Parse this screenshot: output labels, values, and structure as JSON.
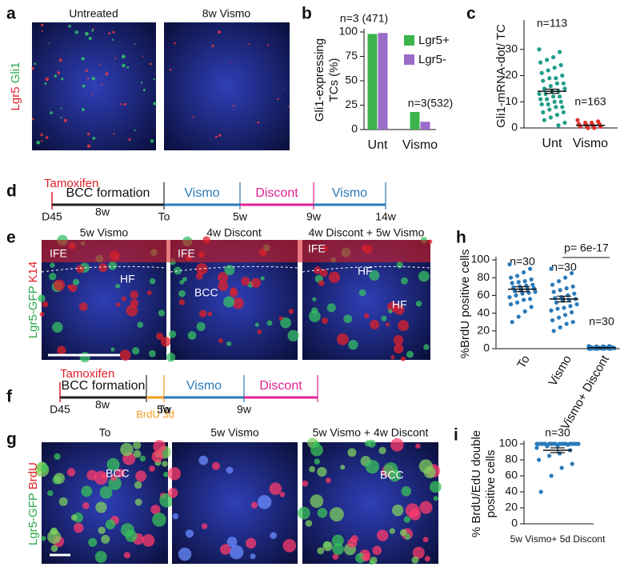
{
  "panel_labels": [
    "a",
    "b",
    "c",
    "d",
    "e",
    "f",
    "g",
    "h",
    "i"
  ],
  "panel_a": {
    "ylabel_red": "Lgr5",
    "ylabel_green": "Gli1",
    "titles": [
      "Untreated",
      "8w Vismo"
    ]
  },
  "panel_e": {
    "ylabel_green": "Lgr5-GFP",
    "ylabel_red": "K14",
    "titles": [
      "5w Vismo",
      "4w Discont",
      "4w Discont + 5w Vismo"
    ],
    "labels": [
      "IFE",
      "HF",
      "IFE",
      "BCC",
      "IFE",
      "HF",
      "HF"
    ]
  },
  "panel_g": {
    "ylabel_green": "Lgr5-GFP",
    "ylabel_red": "BrdU",
    "titles": [
      "To",
      "5w Vismo",
      "5w Vismo + 4w Discont"
    ],
    "labels": [
      "BCC",
      "BCC"
    ]
  },
  "timelines": [
    {
      "start_label": "Tamoxifen",
      "phases": [
        {
          "name": "BCC formation",
          "color": "#222222"
        },
        {
          "name": "Vismo",
          "color": "#2a7ab9"
        },
        {
          "name": "Discont",
          "color": "#e2218f"
        },
        {
          "name": "Vismo",
          "color": "#2a7ab9"
        }
      ],
      "ticks": [
        "D45",
        "8w",
        "To",
        "5w",
        "9w",
        "14w"
      ]
    },
    {
      "start_label": "Tamoxifen",
      "phases": [
        {
          "name": "BCC formation",
          "color": "#222222"
        },
        {
          "name": "BrdU 3d",
          "color": "#f39a1e"
        },
        {
          "name": "Vismo",
          "color": "#2a7ab9"
        },
        {
          "name": "Discont",
          "color": "#e2218f"
        }
      ],
      "ticks": [
        "D45",
        "8w",
        "To",
        "5w",
        "9w"
      ]
    }
  ],
  "chart_data": [
    {
      "type": "bar",
      "ylabel": [
        "Gli1-expressing",
        "TCs (%)"
      ],
      "categories": [
        "Unt",
        "Vismo"
      ],
      "series": [
        {
          "name": "Lgr5+",
          "color": "#3cb44b",
          "values": [
            98,
            18
          ]
        },
        {
          "name": "Lgr5-",
          "color": "#9b6bc8",
          "values": [
            99,
            8
          ]
        }
      ],
      "ylim": [
        0,
        100
      ],
      "yticks": [
        0,
        25,
        50,
        75,
        100
      ],
      "annotations": [
        "n=3 (471)",
        "n=3(532)"
      ]
    },
    {
      "type": "strip",
      "ylabel": [
        "Gli1-mRNA-dot/ TC"
      ],
      "categories": [
        "Unt",
        "Vismo"
      ],
      "groups": [
        {
          "color": "#1f9e89",
          "mean": 14,
          "sem": 0.8,
          "values": [
            30,
            29,
            27,
            26,
            25,
            24,
            23,
            22,
            21,
            20,
            19,
            19,
            18,
            17,
            17,
            16,
            15,
            15,
            14,
            14,
            13,
            13,
            12,
            12,
            11,
            11,
            10,
            10,
            9,
            9,
            8,
            8,
            7,
            6,
            6,
            5,
            4,
            3,
            2,
            1
          ]
        },
        {
          "color": "#e0302a",
          "mean": 1,
          "sem": 0.1,
          "values": [
            3,
            2.5,
            2,
            2,
            1.5,
            1.5,
            1,
            1,
            0.5,
            0.5,
            0,
            0
          ]
        }
      ],
      "ylim": [
        0,
        40
      ],
      "yticks": [
        0,
        10,
        20,
        30
      ],
      "annotations": [
        "n=113",
        "n=163"
      ]
    },
    {
      "type": "strip",
      "ylabel": [
        "%BrdU positive cells"
      ],
      "categories": [
        "To",
        "Vismo",
        "Vismo+ Discont"
      ],
      "groups": [
        {
          "color": "#2a7ab9",
          "mean": 67,
          "sem": 2.8,
          "values": [
            95,
            90,
            86,
            82,
            80,
            78,
            76,
            75,
            74,
            72,
            71,
            70,
            69,
            68,
            67,
            66,
            65,
            64,
            63,
            62,
            60,
            58,
            56,
            55,
            52,
            50,
            47,
            42,
            36,
            30
          ]
        },
        {
          "color": "#2a7ab9",
          "mean": 56,
          "sem": 3.2,
          "values": [
            90,
            85,
            80,
            76,
            72,
            70,
            68,
            66,
            64,
            62,
            60,
            58,
            57,
            56,
            55,
            54,
            52,
            50,
            48,
            46,
            45,
            43,
            41,
            38,
            35,
            32,
            30,
            28,
            24,
            20
          ]
        },
        {
          "color": "#2a7ab9",
          "mean": 1,
          "sem": 0.2,
          "values": [
            3,
            3,
            2.5,
            2.5,
            2,
            2,
            2,
            1.5,
            1.5,
            1.5,
            1,
            1,
            1,
            1,
            1,
            0.5,
            0.5,
            0.5,
            0.5,
            0.5,
            0,
            0,
            0,
            0,
            0,
            0,
            0,
            0,
            0,
            0
          ]
        }
      ],
      "ylim": [
        0,
        100
      ],
      "yticks": [
        0,
        20,
        40,
        60,
        80,
        100
      ],
      "annotations": [
        "n=30",
        "n=30",
        "n=30",
        "p= 6e-17"
      ]
    },
    {
      "type": "strip",
      "ylabel": [
        "% BrdU/EdU double",
        "positive cells"
      ],
      "categories": [
        "5w Vismo+ 5d Discont"
      ],
      "groups": [
        {
          "color": "#2a7ab9",
          "mean": 92,
          "sem": 3,
          "values": [
            100,
            100,
            100,
            100,
            100,
            100,
            100,
            100,
            100,
            100,
            100,
            100,
            100,
            100,
            100,
            100,
            100,
            100,
            99,
            98,
            97,
            95,
            92,
            88,
            85,
            80,
            75,
            70,
            60,
            40
          ]
        }
      ],
      "ylim": [
        0,
        100
      ],
      "yticks": [
        0,
        20,
        40,
        60,
        80,
        100
      ],
      "annotations": [
        "n=30"
      ]
    }
  ]
}
